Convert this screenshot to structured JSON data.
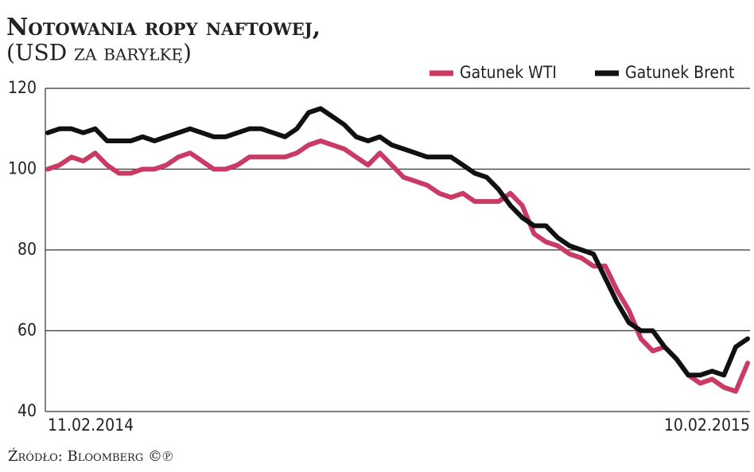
{
  "chart_data": {
    "type": "line",
    "title": "Notowania ropy naftowej,",
    "subtitle": "(USD za baryłkę)",
    "source": "Źródło: Bloomberg ©℗",
    "categories": [
      "11.02.2014",
      null,
      null,
      null,
      null,
      null,
      null,
      null,
      null,
      null,
      null,
      null,
      null,
      null,
      null,
      null,
      null,
      null,
      null,
      null,
      null,
      null,
      null,
      null,
      null,
      null,
      null,
      null,
      null,
      null,
      null,
      null,
      null,
      null,
      null,
      null,
      null,
      null,
      null,
      null,
      null,
      null,
      null,
      null,
      null,
      null,
      null,
      null,
      null,
      null,
      null,
      null,
      null,
      null,
      null,
      null,
      null,
      null,
      null,
      "10.02.2015"
    ],
    "series": [
      {
        "name": "Gatunek WTI",
        "color": "#c93a64",
        "values": [
          100,
          101,
          103,
          102,
          104,
          101,
          99,
          99,
          100,
          100,
          101,
          103,
          104,
          102,
          100,
          100,
          101,
          103,
          103,
          103,
          103,
          104,
          106,
          107,
          106,
          105,
          103,
          101,
          104,
          101,
          98,
          97,
          96,
          94,
          93,
          94,
          92,
          92,
          92,
          94,
          91,
          84,
          82,
          81,
          79,
          78,
          76,
          76,
          70,
          65,
          58,
          55,
          56,
          53,
          49,
          47,
          48,
          46,
          45,
          52
        ]
      },
      {
        "name": "Gatunek Brent",
        "color": "#111111",
        "values": [
          109,
          110,
          110,
          109,
          110,
          107,
          107,
          107,
          108,
          107,
          108,
          109,
          110,
          109,
          108,
          108,
          109,
          110,
          110,
          109,
          108,
          110,
          114,
          115,
          113,
          111,
          108,
          107,
          108,
          106,
          105,
          104,
          103,
          103,
          103,
          101,
          99,
          98,
          95,
          91,
          88,
          86,
          86,
          83,
          81,
          80,
          79,
          73,
          67,
          62,
          60,
          60,
          56,
          53,
          49,
          49,
          50,
          49,
          56,
          58
        ]
      }
    ],
    "ylim": [
      40,
      120
    ],
    "yticks": [
      40,
      60,
      80,
      100,
      120
    ],
    "grid": true
  }
}
